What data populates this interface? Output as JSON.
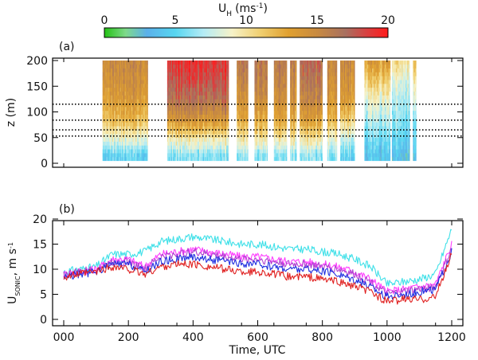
{
  "chart_data": [
    {
      "panel": "colorbar",
      "type": "heatmap-scale",
      "title": "U_H (ms^-1)",
      "title_main": "U",
      "title_sub": "H",
      "title_unit": "(ms",
      "title_exp": "-1",
      "title_close": ")",
      "range": [
        0,
        20
      ],
      "tick_values": [
        0,
        5,
        10,
        15,
        20
      ],
      "tick_labels": [
        "0",
        "5",
        "10",
        "15",
        "20"
      ],
      "colorscale": [
        {
          "v": 0,
          "color": "#23c214"
        },
        {
          "v": 1.5,
          "color": "#7fd98a"
        },
        {
          "v": 3,
          "color": "#5bb0ea"
        },
        {
          "v": 5,
          "color": "#57d6f0"
        },
        {
          "v": 7,
          "color": "#b5ecf5"
        },
        {
          "v": 9,
          "color": "#f6f2c8"
        },
        {
          "v": 11,
          "color": "#f0cf70"
        },
        {
          "v": 13,
          "color": "#e0a030"
        },
        {
          "v": 15,
          "color": "#c88a40"
        },
        {
          "v": 17,
          "color": "#a87060"
        },
        {
          "v": 18.5,
          "color": "#d84040"
        },
        {
          "v": 20,
          "color": "#ff1a1a"
        }
      ]
    },
    {
      "panel": "a",
      "panel_label": "(a)",
      "type": "heatmap",
      "ylabel": "z (m)",
      "xlim": [
        0,
        1200
      ],
      "ylim": [
        0,
        200
      ],
      "yticks": [
        0,
        50,
        100,
        150,
        200
      ],
      "ytick_labels": [
        "0",
        "50",
        "100",
        "150",
        "200"
      ],
      "reference_heights": [
        115,
        84,
        65,
        53
      ],
      "data_blocks": [
        {
          "x": [
            120,
            260
          ],
          "profile": [
            5,
            9,
            12,
            13.5,
            14.5,
            15
          ]
        },
        {
          "x": [
            320,
            510
          ],
          "profile": [
            6,
            10,
            14,
            16.5,
            18,
            19
          ]
        },
        {
          "x": [
            535,
            570
          ],
          "profile": [
            6,
            10,
            12.5,
            14,
            15,
            16
          ]
        },
        {
          "x": [
            590,
            630
          ],
          "profile": [
            6,
            10,
            12.5,
            14.5,
            15.5,
            16
          ]
        },
        {
          "x": [
            650,
            690
          ],
          "profile": [
            6,
            10,
            13,
            14.5,
            15.5,
            16
          ]
        },
        {
          "x": [
            700,
            720
          ],
          "profile": [
            6,
            10,
            12.5,
            14,
            15,
            15.5
          ]
        },
        {
          "x": [
            730,
            800
          ],
          "profile": [
            6,
            10,
            13,
            15,
            16,
            17
          ]
        },
        {
          "x": [
            815,
            845
          ],
          "profile": [
            6,
            9,
            12,
            13.5,
            14.5,
            15
          ]
        },
        {
          "x": [
            855,
            900
          ],
          "profile": [
            5,
            8,
            11,
            13.5,
            14.5,
            15
          ]
        },
        {
          "x": [
            930,
            1010
          ],
          "profile": [
            4,
            5.5,
            7,
            8.5,
            11,
            13.5
          ]
        },
        {
          "x": [
            1015,
            1070
          ],
          "profile": [
            3.5,
            5,
            6,
            7,
            8,
            10.5
          ]
        },
        {
          "x": [
            1080,
            1090
          ],
          "profile": [
            4,
            5,
            6,
            8,
            10,
            12
          ]
        }
      ],
      "profile_heights": [
        15,
        50,
        85,
        120,
        160,
        200
      ]
    },
    {
      "panel": "b",
      "panel_label": "(b)",
      "type": "line",
      "xlabel": "Time, UTC",
      "ylabel": "U_SONIC, m s^-1",
      "ylabel_main": "U",
      "ylabel_sub": "SONIC",
      "ylabel_rest": ", m s",
      "ylabel_exp": "-1",
      "xlim": [
        0,
        1200
      ],
      "ylim": [
        0,
        20
      ],
      "xticks": [
        0,
        200,
        400,
        600,
        800,
        1000,
        1200
      ],
      "xtick_labels": [
        "000",
        "200",
        "400",
        "600",
        "800",
        "1000",
        "1200"
      ],
      "yticks": [
        0,
        5,
        10,
        15,
        20
      ],
      "ytick_labels": [
        "0",
        "5",
        "10",
        "15",
        "20"
      ],
      "x": [
        0,
        50,
        100,
        150,
        200,
        250,
        300,
        350,
        400,
        450,
        500,
        550,
        600,
        650,
        700,
        750,
        800,
        850,
        900,
        950,
        1000,
        1050,
        1100,
        1150,
        1200
      ],
      "series": [
        {
          "color": "#3fe0e8",
          "values": [
            9.5,
            10,
            10.5,
            13,
            13,
            13.5,
            15.5,
            16,
            16.5,
            16,
            15.5,
            15,
            15,
            14.5,
            14,
            14,
            13.5,
            13,
            12,
            10.5,
            7,
            7.5,
            8,
            9,
            18
          ]
        },
        {
          "color": "#ff40ff",
          "values": [
            9,
            9.5,
            10,
            12,
            12,
            10.5,
            13,
            13.5,
            14,
            13.5,
            13,
            12.5,
            12.5,
            12,
            11.5,
            11.5,
            11,
            10.5,
            9.5,
            8,
            5.5,
            6,
            6.5,
            7,
            15
          ]
        },
        {
          "color": "#b040d0",
          "values": [
            9,
            9.5,
            10,
            11.5,
            11.5,
            10,
            12.5,
            13,
            13.5,
            13,
            12.5,
            12,
            12,
            11.5,
            11,
            11,
            10.5,
            10,
            9,
            7.5,
            5,
            5.5,
            6,
            6.5,
            14
          ]
        },
        {
          "color": "#2030e0",
          "values": [
            8.5,
            9,
            9.5,
            11,
            11,
            9.5,
            11.5,
            12,
            12.5,
            12,
            11.5,
            11,
            11,
            10.5,
            10,
            10,
            9.5,
            9,
            8,
            6.5,
            4.5,
            5,
            5.5,
            6,
            13.5
          ]
        },
        {
          "color": "#e02020",
          "values": [
            8.5,
            9,
            9.5,
            10.5,
            10,
            9,
            10.5,
            11,
            11,
            10.5,
            10,
            9.5,
            9.5,
            9,
            8.5,
            8.5,
            8,
            7.5,
            6.5,
            5.5,
            3.5,
            4,
            4,
            4.5,
            13
          ]
        }
      ]
    }
  ]
}
